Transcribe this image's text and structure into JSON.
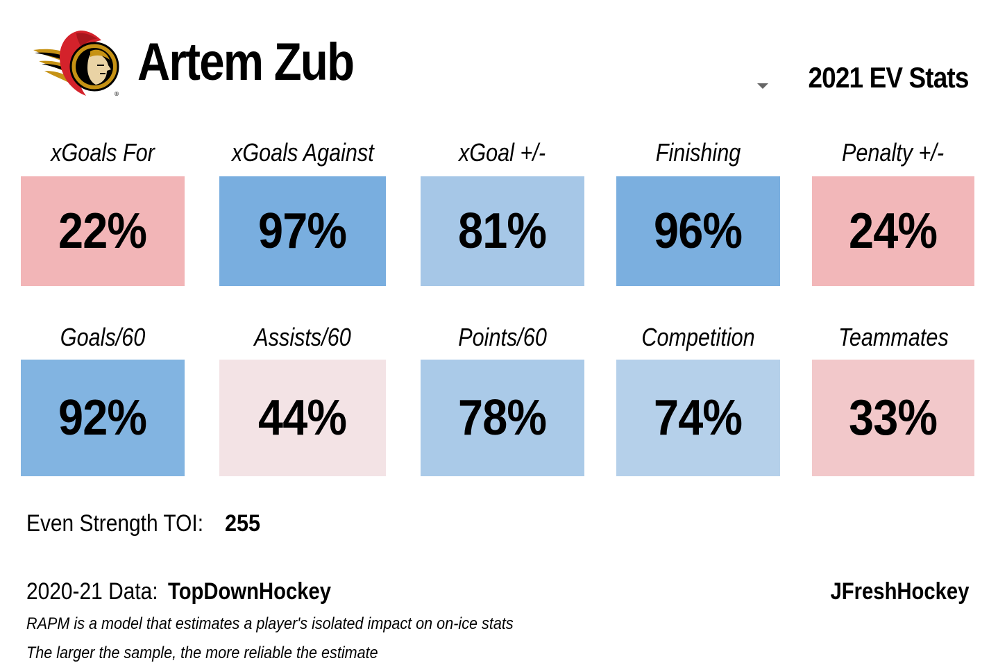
{
  "header": {
    "player_name": "Artem Zub",
    "team_logo_icon": "ottawa-senators-logo-icon",
    "season_label": "2021 EV Stats",
    "dropdown_icon": "caret-down-icon"
  },
  "metrics": [
    {
      "label": "xGoals For",
      "value": "22%",
      "percentile": 22,
      "color": "#f2b5b7"
    },
    {
      "label": "xGoals Against",
      "value": "97%",
      "percentile": 97,
      "color": "#79aedf"
    },
    {
      "label": "xGoal +/-",
      "value": "81%",
      "percentile": 81,
      "color": "#a6c7e7"
    },
    {
      "label": "Finishing",
      "value": "96%",
      "percentile": 96,
      "color": "#7bafdf"
    },
    {
      "label": "Penalty +/-",
      "value": "24%",
      "percentile": 24,
      "color": "#f2b7b9"
    },
    {
      "label": "Goals/60",
      "value": "92%",
      "percentile": 92,
      "color": "#82b4e1"
    },
    {
      "label": "Assists/60",
      "value": "44%",
      "percentile": 44,
      "color": "#f3e3e5"
    },
    {
      "label": "Points/60",
      "value": "78%",
      "percentile": 78,
      "color": "#aacae8"
    },
    {
      "label": "Competition",
      "value": "74%",
      "percentile": 74,
      "color": "#b5d0ea"
    },
    {
      "label": "Teammates",
      "value": "33%",
      "percentile": 33,
      "color": "#f2c8ca"
    }
  ],
  "toi": {
    "label": "Even Strength TOI:",
    "value": "255"
  },
  "source": {
    "label": "2020-21 Data:",
    "value": "TopDownHockey"
  },
  "credit": "JFreshHockey",
  "footnotes": [
    "RAPM is a model that estimates a player's isolated impact on on-ice stats",
    "The larger the sample, the more reliable the estimate"
  ]
}
